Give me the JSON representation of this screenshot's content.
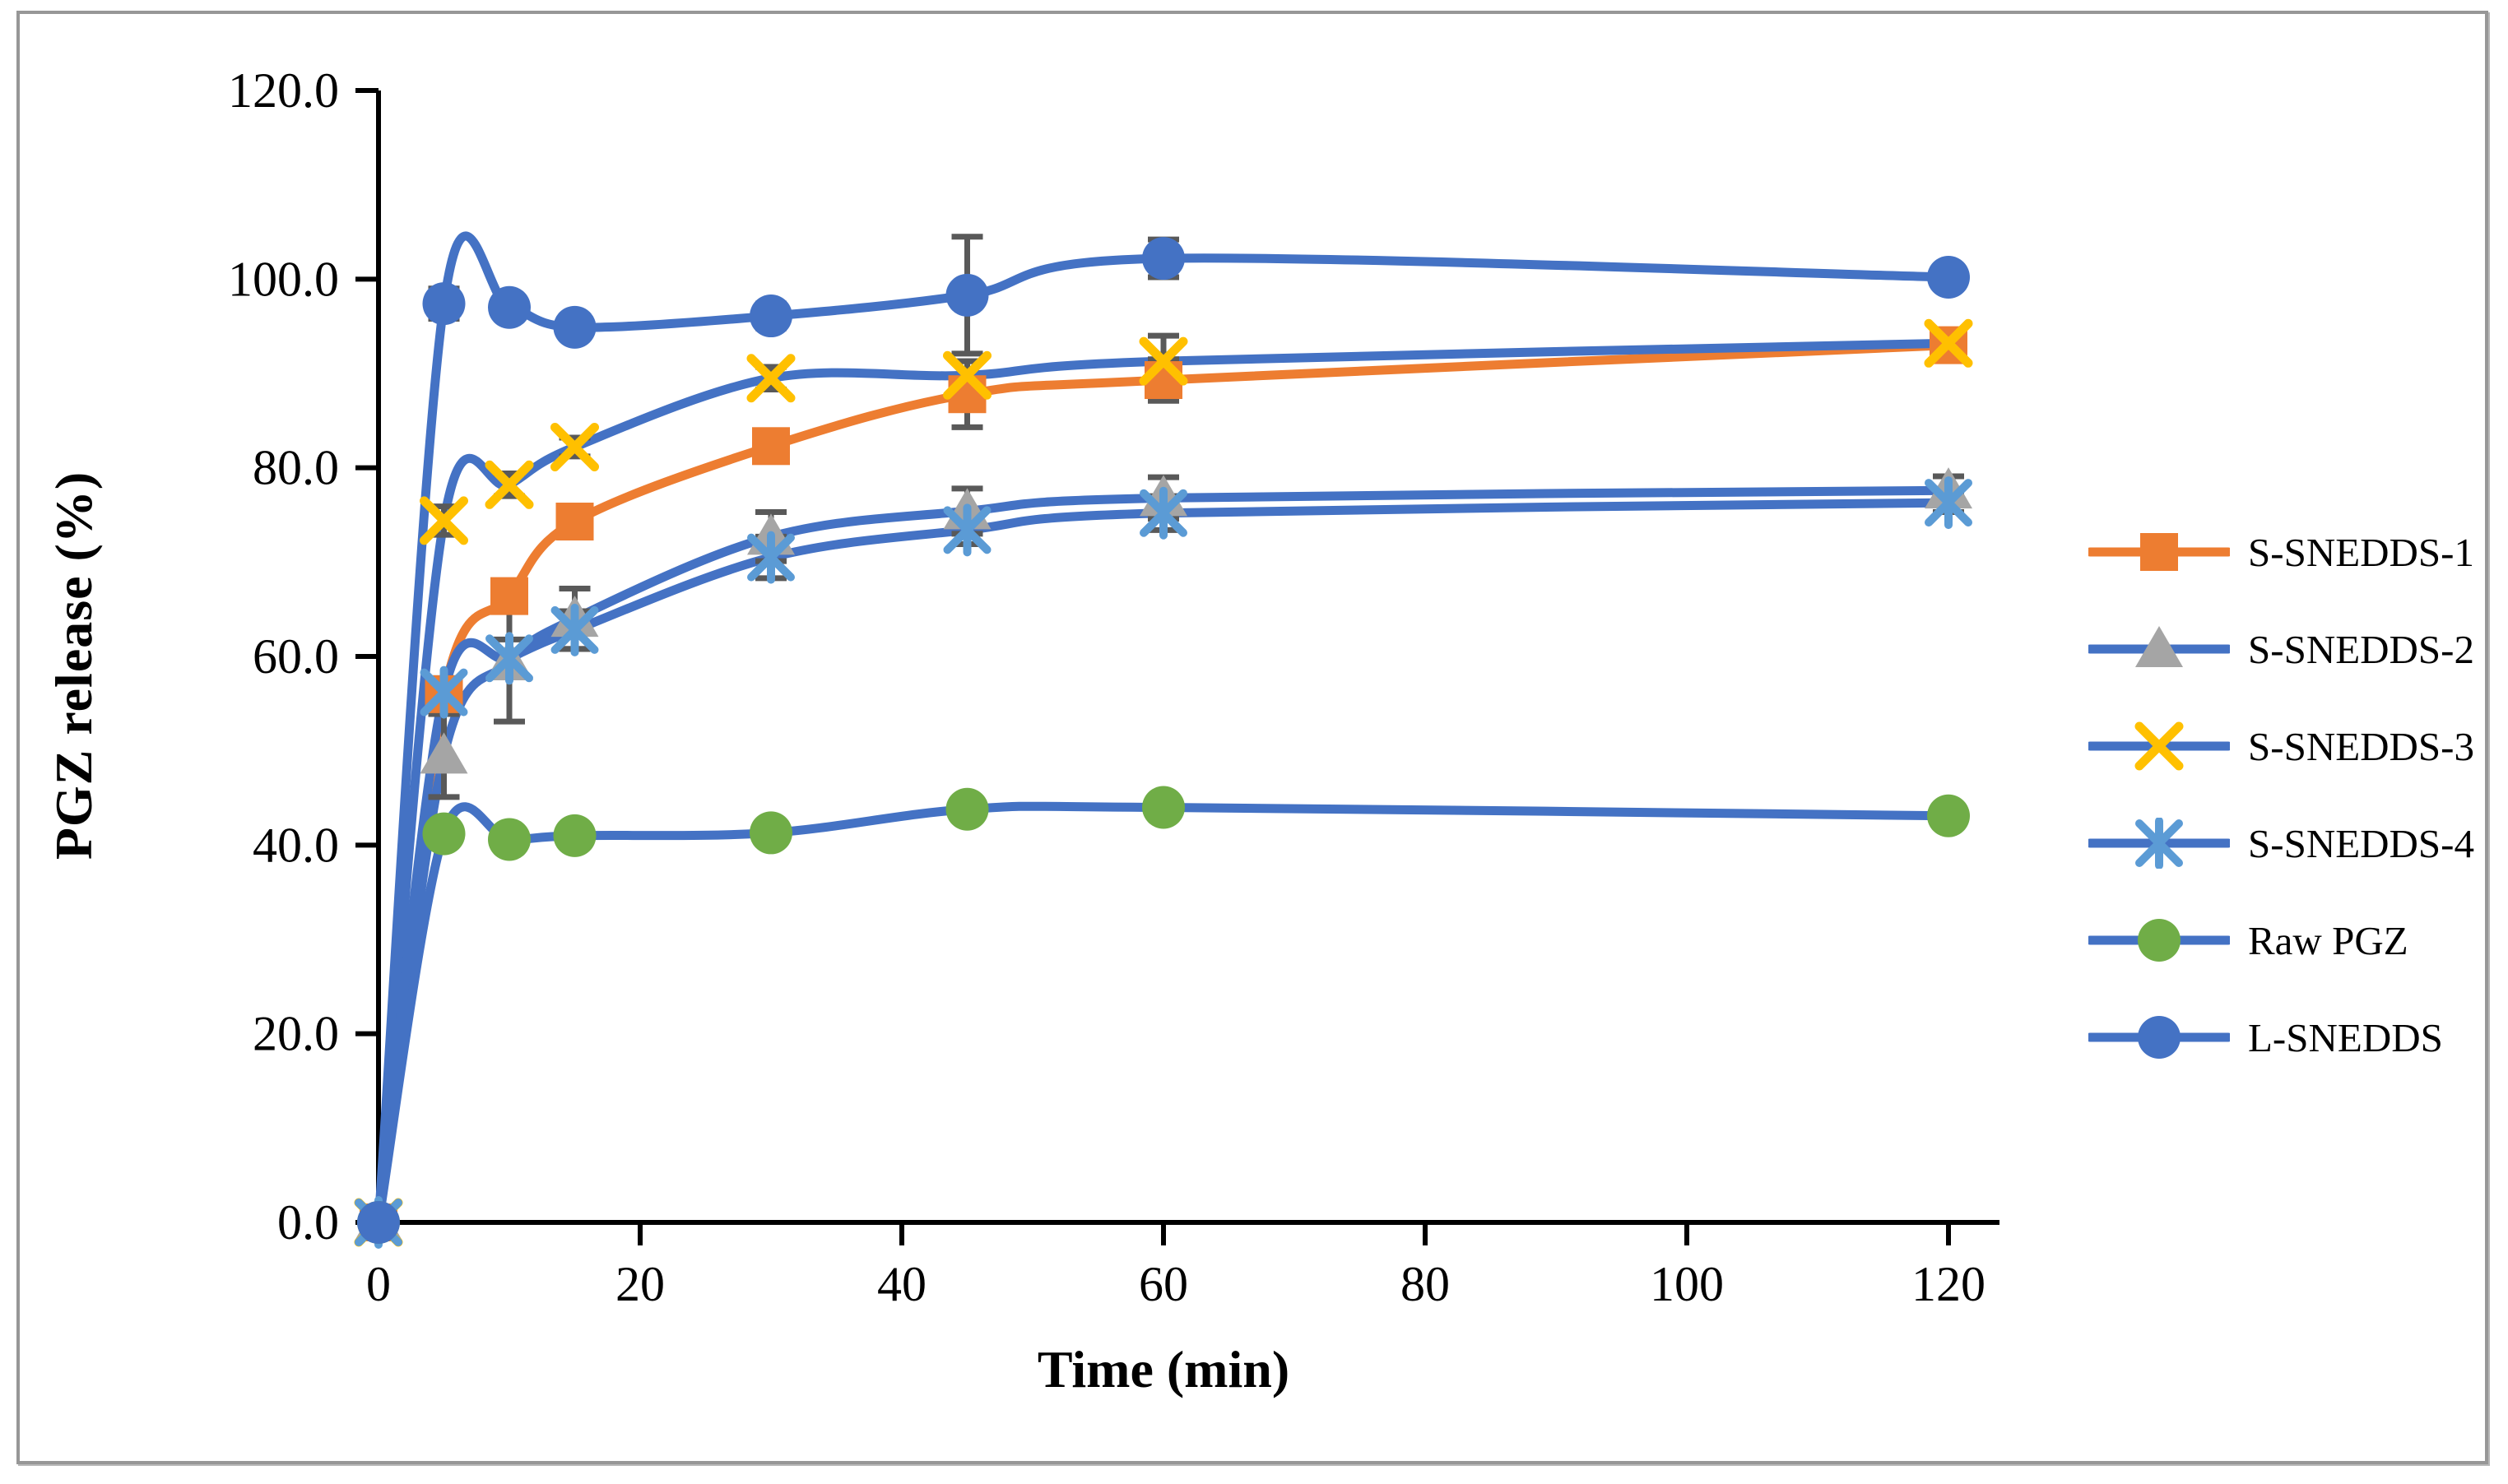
{
  "figure": {
    "background": "#ffffff",
    "frame_border_color": "#979797"
  },
  "chart_data": {
    "type": "line",
    "title": "",
    "xlabel": "Time (min)",
    "ylabel": "PGZ release (%)",
    "xlim": [
      0,
      120
    ],
    "ylim": [
      0,
      120
    ],
    "x_ticks": [
      "0",
      "20",
      "40",
      "60",
      "80",
      "100",
      "120"
    ],
    "y_ticks": [
      "0.0",
      "20.0",
      "40.0",
      "60.0",
      "80.0",
      "100.0",
      "120.0"
    ],
    "grid": "off",
    "legend_position": "right",
    "axis_color": "#000000",
    "error_bar_color": "#595959",
    "x": [
      0,
      5,
      10,
      15,
      30,
      45,
      60,
      120
    ],
    "series": [
      {
        "name": "S-SNEDDS-1",
        "marker": "square",
        "marker_color": "#ED7D31",
        "line_color": "#ED7D31",
        "values": [
          0,
          56.0,
          66.4,
          74.3,
          82.3,
          87.8,
          89.3,
          93.0
        ],
        "errors": [
          0,
          1.2,
          1.0,
          1.5,
          1.0,
          3.5,
          2.2,
          0.8
        ]
      },
      {
        "name": "S-SNEDDS-2",
        "marker": "triangle",
        "marker_color": "#A5A5A5",
        "line_color": "#4472C4",
        "values": [
          0,
          49.5,
          59.4,
          64.0,
          72.7,
          75.4,
          76.8,
          77.6
        ],
        "errors": [
          0,
          4.4,
          6.3,
          3.2,
          2.6,
          2.4,
          2.2,
          1.5
        ]
      },
      {
        "name": "S-SNEDDS-3",
        "marker": "x",
        "marker_color": "#FFC000",
        "line_color": "#4472C4",
        "values": [
          0,
          74.4,
          78.2,
          82.2,
          89.5,
          89.8,
          91.3,
          93.2
        ],
        "errors": [
          0,
          1.5,
          1.2,
          1.0,
          1.2,
          1.5,
          2.7,
          1.2
        ]
      },
      {
        "name": "S-SNEDDS-4",
        "marker": "asterisk",
        "marker_color": "#5B9BD5",
        "line_color": "#4472C4",
        "values": [
          0,
          56.2,
          59.8,
          62.8,
          70.5,
          73.4,
          75.2,
          76.3
        ],
        "errors": [
          0,
          1.5,
          2.0,
          2.0,
          2.2,
          1.5,
          1.8,
          1.0
        ]
      },
      {
        "name": "Raw PGZ",
        "marker": "circle",
        "marker_color": "#70AD47",
        "line_color": "#4472C4",
        "values": [
          0,
          41.2,
          40.6,
          41.0,
          41.3,
          43.8,
          44.0,
          43.1
        ],
        "errors": [
          0,
          0.8,
          0.8,
          0.8,
          0.8,
          0.8,
          0.8,
          0.8
        ]
      },
      {
        "name": "L-SNEDDS",
        "marker": "circle",
        "marker_color": "#4472C4",
        "line_color": "#4472C4",
        "values": [
          0,
          97.4,
          97.0,
          94.9,
          96.1,
          98.3,
          102.2,
          100.2
        ],
        "errors": [
          0,
          1.6,
          0.9,
          0.9,
          1.3,
          6.2,
          2.0,
          1.1
        ]
      }
    ]
  }
}
